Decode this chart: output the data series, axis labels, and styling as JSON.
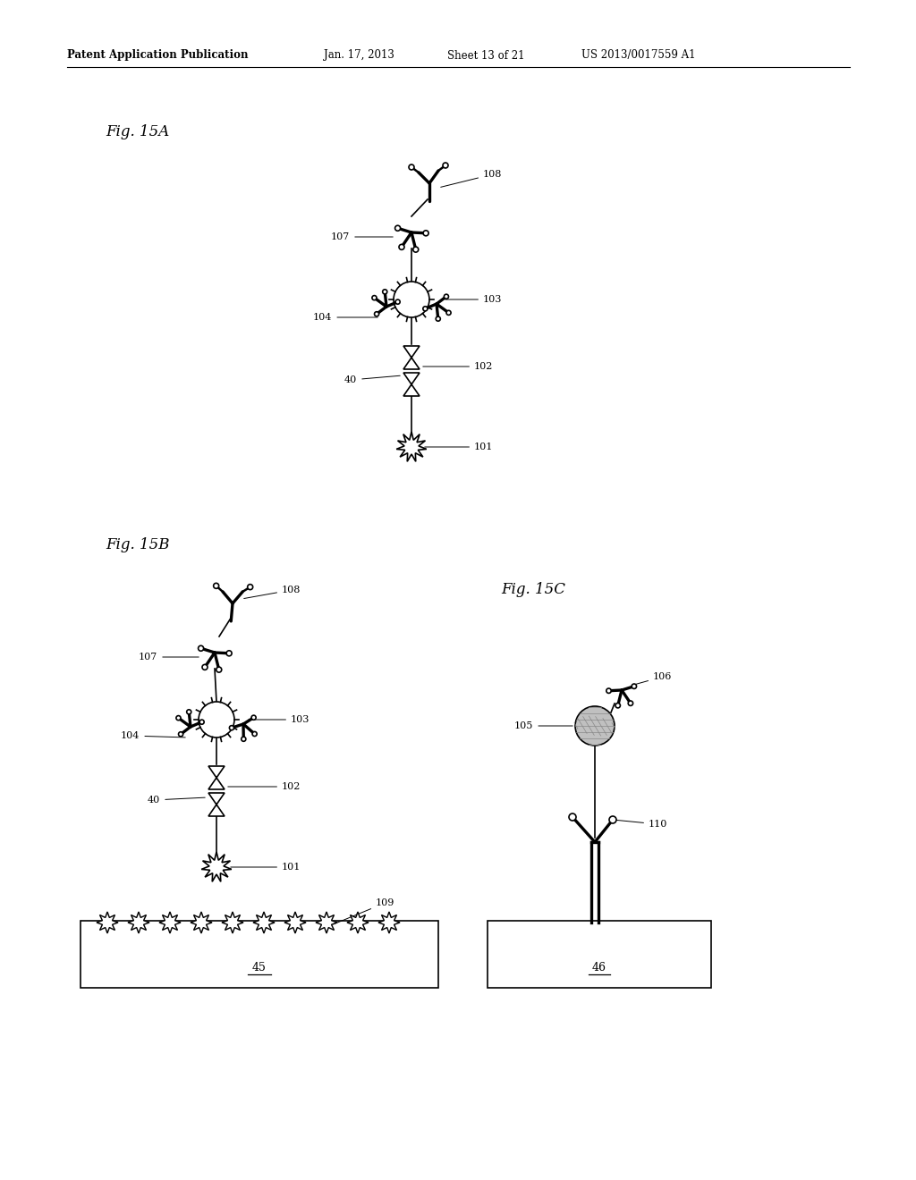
{
  "bg_color": "#ffffff",
  "header_text": "Patent Application Publication",
  "header_date": "Jan. 17, 2013",
  "header_sheet": "Sheet 13 of 21",
  "header_patent": "US 2013/0017559 A1",
  "fig15a_label": "Fig. 15A",
  "fig15b_label": "Fig. 15B",
  "fig15c_label": "Fig. 15C",
  "label_color": "#000000",
  "line_color": "#000000",
  "line_width": 1.2,
  "fill_color": "#ffffff",
  "gray_fill": "#c0c0c0"
}
